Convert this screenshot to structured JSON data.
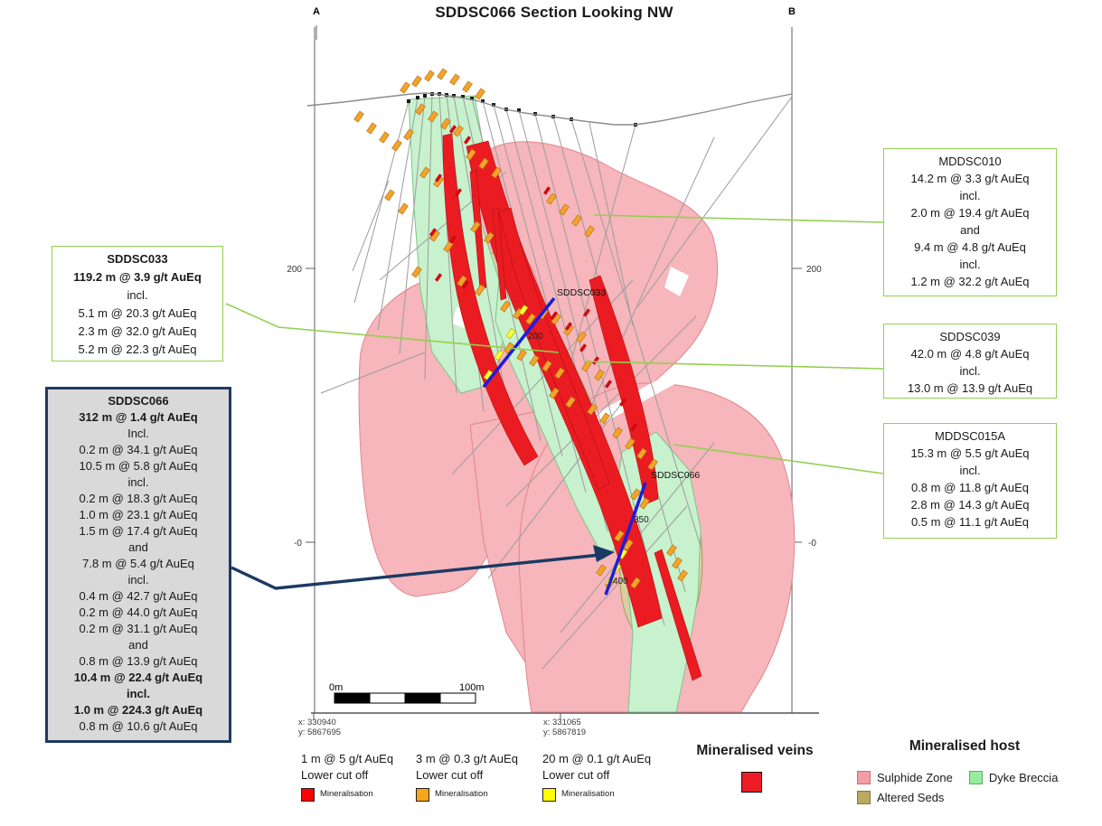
{
  "title": "SDDSC066 Section Looking NW",
  "section_markers": {
    "left": "A",
    "right": "B"
  },
  "axis": {
    "left_200": "200",
    "left_0": "-0",
    "right_200": "200",
    "right_0": "-0"
  },
  "map_labels": {
    "sddsc033": "SDDSC033",
    "sddsc066": "SDDSC066",
    "depth_200": "200",
    "depth_350": "350",
    "depth_400": "400"
  },
  "scale_bar": {
    "start": "0m",
    "end": "100m"
  },
  "coordinates": {
    "left": {
      "x": "x: 330940",
      "y": "y: 5867695"
    },
    "right": {
      "x": "x: 331065",
      "y": "y: 5867819"
    }
  },
  "callouts": {
    "sddsc033": {
      "lines": [
        {
          "t": "SDDSC033",
          "b": true
        },
        {
          "t": "119.2 m @ 3.9 g/t AuEq",
          "b": true
        },
        {
          "t": "incl."
        },
        {
          "t": "5.1 m @ 20.3 g/t AuEq"
        },
        {
          "t": "2.3 m @ 32.0 g/t AuEq"
        },
        {
          "t": "5.2 m @ 22.3 g/t AuEq"
        }
      ]
    },
    "sddsc066": {
      "lines": [
        {
          "t": "SDDSC066",
          "b": true
        },
        {
          "t": "312 m @ 1.4 g/t AuEq",
          "b": true
        },
        {
          "t": "Incl."
        },
        {
          "t": "0.2 m @ 34.1 g/t AuEq"
        },
        {
          "t": "10.5 m @ 5.8 g/t AuEq"
        },
        {
          "t": "incl."
        },
        {
          "t": "0.2 m @ 18.3 g/t AuEq"
        },
        {
          "t": "1.0 m @ 23.1 g/t AuEq"
        },
        {
          "t": "1.5 m @ 17.4 g/t AuEq"
        },
        {
          "t": "and"
        },
        {
          "t": "7.8 m @ 5.4 g/t AuEq"
        },
        {
          "t": "incl."
        },
        {
          "t": "0.4 m @ 42.7 g/t AuEq"
        },
        {
          "t": "0.2 m @ 44.0 g/t AuEq"
        },
        {
          "t": "0.2 m @ 31.1 g/t AuEq"
        },
        {
          "t": "and"
        },
        {
          "t": "0.8 m @ 13.9 g/t AuEq"
        },
        {
          "t": "10.4 m @ 22.4 g/t AuEq",
          "b": true
        },
        {
          "t": "incl.",
          "b": true
        },
        {
          "t": "1.0 m @ 224.3 g/t AuEq",
          "b": true
        },
        {
          "t": "0.8 m @ 10.6 g/t AuEq"
        }
      ]
    },
    "mddsc010": {
      "lines": [
        {
          "t": "MDDSC010"
        },
        {
          "t": "14.2 m @ 3.3 g/t AuEq"
        },
        {
          "t": "incl."
        },
        {
          "t": "2.0 m @ 19.4 g/t AuEq"
        },
        {
          "t": "and"
        },
        {
          "t": "9.4 m @ 4.8 g/t AuEq"
        },
        {
          "t": "incl."
        },
        {
          "t": "1.2 m @ 32.2 g/t AuEq"
        }
      ]
    },
    "sddsc039": {
      "lines": [
        {
          "t": "SDDSC039"
        },
        {
          "t": "42.0 m @ 4.8 g/t AuEq"
        },
        {
          "t": "incl."
        },
        {
          "t": "13.0 m @ 13.9 g/t AuEq"
        }
      ]
    },
    "mddsc015a": {
      "lines": [
        {
          "t": "MDDSC015A"
        },
        {
          "t": "15.3 m @ 5.5 g/t AuEq"
        },
        {
          "t": "incl."
        },
        {
          "t": "0.8 m @ 11.8 g/t AuEq"
        },
        {
          "t": "2.8 m @ 14.3 g/t AuEq"
        },
        {
          "t": "0.5 m @ 11.1 g/t AuEq"
        }
      ]
    }
  },
  "legend": {
    "cutoffs": [
      {
        "line1": "1 m @ 5 g/t AuEq",
        "line2": "Lower cut off",
        "label": "Mineralisation",
        "color": "#ff0000"
      },
      {
        "line1": "3 m @ 0.3 g/t AuEq",
        "line2": "Lower cut off",
        "label": "Mineralisation",
        "color": "#f9a51a"
      },
      {
        "line1": "20 m @ 0.1 g/t AuEq",
        "line2": "Lower cut off",
        "label": "Mineralisation",
        "color": "#ffff00"
      }
    ],
    "veins": {
      "heading": "Mineralised veins",
      "color": "#ee1c25"
    },
    "host": {
      "heading": "Mineralised host",
      "items": [
        {
          "label": "Sulphide Zone",
          "color": "#f59da4"
        },
        {
          "label": "Dyke Breccia",
          "color": "#97ec9e"
        },
        {
          "label": "Altered Seds",
          "color": "#b8ab61"
        }
      ]
    }
  },
  "colors": {
    "sulphide_fill": "#f6b6bb",
    "sulphide_edge": "#e2858d",
    "dyke_fill": "#c8f1cd",
    "dyke_edge": "#7ec487",
    "altered_fill": "#d8d0a2",
    "altered_edge": "#a89a55",
    "vein_red": "#ea1c21",
    "marker_orange": "#f4a32a",
    "marker_yellow": "#ffff33",
    "leader_green": "#92d050",
    "arrow_navy": "#1b3a63",
    "trace_blue": "#1d1ddd",
    "trace_gray": "#9c9c9c",
    "box_gray": "#d9d9d9"
  }
}
